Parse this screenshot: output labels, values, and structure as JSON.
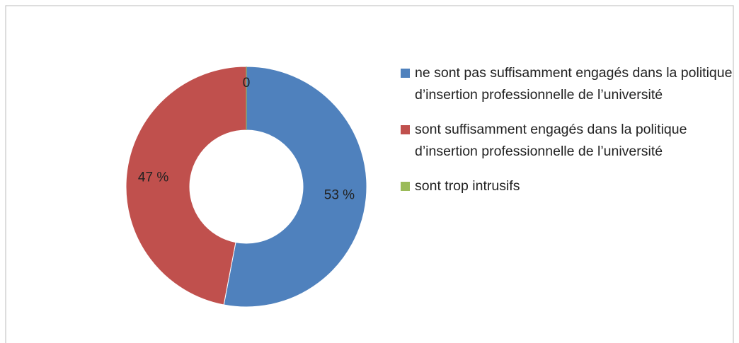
{
  "chart_data": {
    "type": "donut",
    "categories": [
      "ne sont pas suffisamment engagés dans la politique d’insertion professionnelle de l’université",
      "sont suffisamment engagés dans la politique d’insertion professionnelle de l’université",
      "sont trop intrusifs"
    ],
    "values": [
      53,
      47,
      0
    ],
    "value_labels": [
      "53 %",
      "47 %",
      "0"
    ],
    "colors": [
      "#4f81bd",
      "#c0504d",
      "#9bbb59"
    ],
    "legend": "right"
  }
}
